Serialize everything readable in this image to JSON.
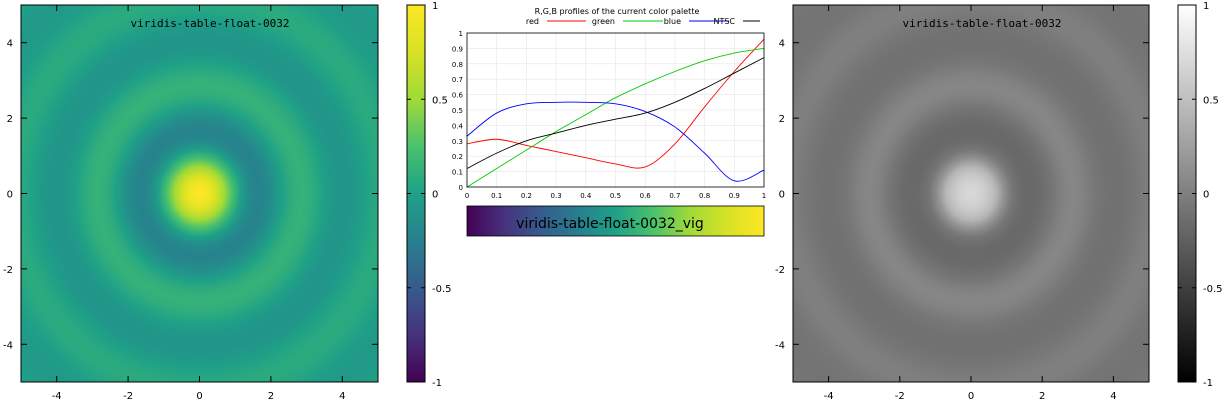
{
  "left_map": {
    "title": "viridis-table-float-0032",
    "x_ticks": [
      "-4",
      "-2",
      "0",
      "2",
      "4"
    ],
    "y_ticks": [
      "4",
      "2",
      "0",
      "-2",
      "-4"
    ],
    "colorbar_ticks": [
      "1",
      "0.5",
      "0",
      "-0.5",
      "-1"
    ],
    "palette": "viridis"
  },
  "right_map": {
    "title": "viridis-table-float-0032",
    "x_ticks": [
      "-4",
      "-2",
      "0",
      "2",
      "4"
    ],
    "y_ticks": [
      "4",
      "2",
      "0",
      "-2",
      "-4"
    ],
    "colorbar_ticks": [
      "1",
      "0.5",
      "0",
      "-0.5",
      "-1"
    ],
    "palette": "gray"
  },
  "profile": {
    "title": "R,G,B profiles of the current color palette",
    "legend": [
      "red",
      "green",
      "blue",
      "NTSC"
    ],
    "x_ticks": [
      "0",
      "0.1",
      "0.2",
      "0.3",
      "0.4",
      "0.5",
      "0.6",
      "0.7",
      "0.8",
      "0.9",
      "1"
    ],
    "y_ticks": [
      "0",
      "0.1",
      "0.2",
      "0.3",
      "0.4",
      "0.5",
      "0.6",
      "0.7",
      "0.8",
      "0.9",
      "1"
    ],
    "gradient_label": "viridis-table-float-0032_vig"
  },
  "chart_data": [
    {
      "type": "heatmap",
      "title": "viridis-table-float-0032",
      "xlim": [
        -5,
        5
      ],
      "ylim": [
        -5,
        5
      ],
      "zlim": [
        -1,
        1
      ],
      "colormap": "viridis",
      "grid": false
    },
    {
      "type": "line",
      "title": "R,G,B profiles of the current color palette",
      "xlim": [
        0,
        1
      ],
      "ylim": [
        0,
        1
      ],
      "legend_position": "top",
      "x": [
        0,
        0.1,
        0.2,
        0.3,
        0.4,
        0.5,
        0.6,
        0.7,
        0.8,
        0.9,
        1
      ],
      "series": [
        {
          "name": "red",
          "color": "#ff0000",
          "values": [
            0.28,
            0.31,
            0.27,
            0.23,
            0.19,
            0.15,
            0.13,
            0.28,
            0.52,
            0.75,
            0.96
          ]
        },
        {
          "name": "green",
          "color": "#00cc00",
          "values": [
            0.0,
            0.12,
            0.24,
            0.36,
            0.47,
            0.58,
            0.67,
            0.75,
            0.82,
            0.87,
            0.9
          ]
        },
        {
          "name": "blue",
          "color": "#0000ff",
          "values": [
            0.33,
            0.48,
            0.54,
            0.55,
            0.55,
            0.54,
            0.49,
            0.39,
            0.22,
            0.04,
            0.11
          ]
        },
        {
          "name": "NTSC",
          "color": "#000000",
          "values": [
            0.12,
            0.22,
            0.3,
            0.35,
            0.4,
            0.44,
            0.48,
            0.55,
            0.64,
            0.74,
            0.84
          ]
        }
      ]
    },
    {
      "type": "heatmap",
      "title": "viridis-table-float-0032",
      "xlim": [
        -5,
        5
      ],
      "ylim": [
        -5,
        5
      ],
      "zlim": [
        -1,
        1
      ],
      "colormap": "gray",
      "grid": false
    }
  ]
}
